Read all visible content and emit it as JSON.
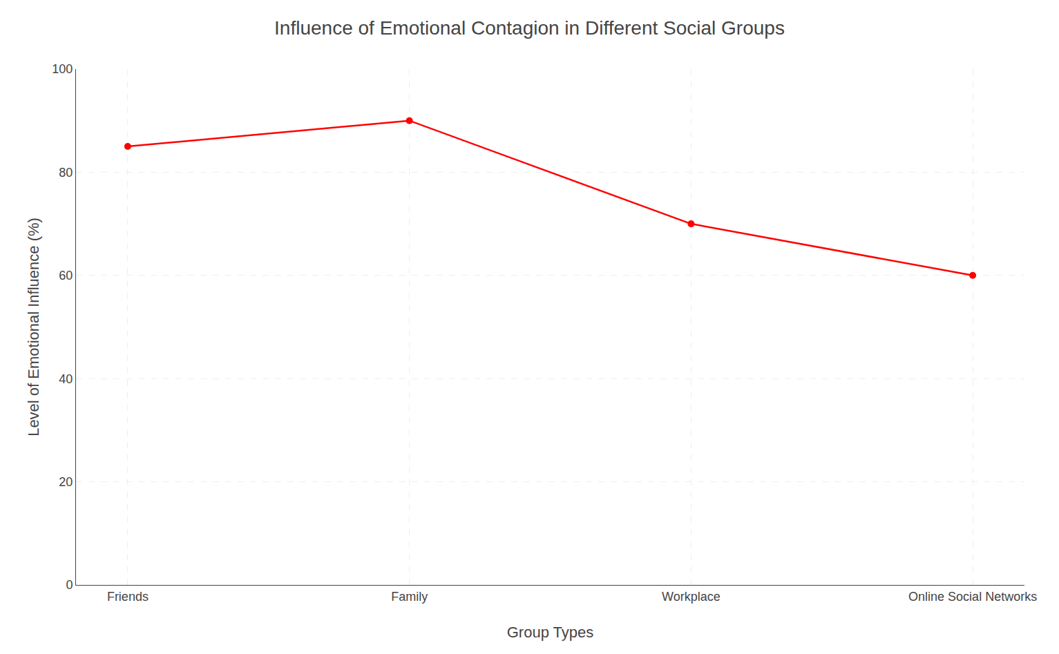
{
  "chart_data": {
    "type": "line",
    "title": "Influence of Emotional Contagion in Different Social Groups",
    "xlabel": "Group Types",
    "ylabel": "Level of Emotional Influence (%)",
    "categories": [
      "Friends",
      "Family",
      "Workplace",
      "Online Social Networks"
    ],
    "values": [
      85,
      90,
      70,
      60
    ],
    "color": "#ff0000",
    "marker": "circle",
    "ylim": [
      0,
      100
    ],
    "yticks": [
      0,
      20,
      40,
      60,
      80,
      100
    ],
    "grid": true
  }
}
